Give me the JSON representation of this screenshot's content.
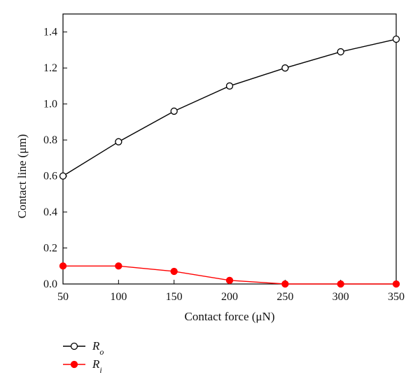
{
  "chart_data": {
    "type": "line",
    "title": "",
    "xlabel": "Contact force (μN)",
    "ylabel": "Contact line (μm)",
    "x": [
      50,
      100,
      150,
      200,
      250,
      300,
      350
    ],
    "xlim": [
      50,
      350
    ],
    "ylim": [
      0,
      1.5
    ],
    "x_ticks": [
      "50",
      "100",
      "150",
      "200",
      "250",
      "300",
      "350"
    ],
    "y_ticks": [
      "0.0",
      "0.2",
      "0.4",
      "0.6",
      "0.8",
      "1.0",
      "1.2",
      "1.4"
    ],
    "grid": false,
    "legend_position": "bottom-left",
    "series": [
      {
        "name": "Ro",
        "name_base": "R",
        "name_sub": "o",
        "color": "#000000",
        "marker": "open-circle",
        "values": [
          0.6,
          0.79,
          0.96,
          1.1,
          1.2,
          1.29,
          1.36
        ]
      },
      {
        "name": "Ri",
        "name_base": "R",
        "name_sub": "i",
        "color": "#ff0000",
        "marker": "filled-circle",
        "values": [
          0.1,
          0.1,
          0.07,
          0.02,
          0.0,
          0.0,
          0.0
        ]
      }
    ]
  }
}
